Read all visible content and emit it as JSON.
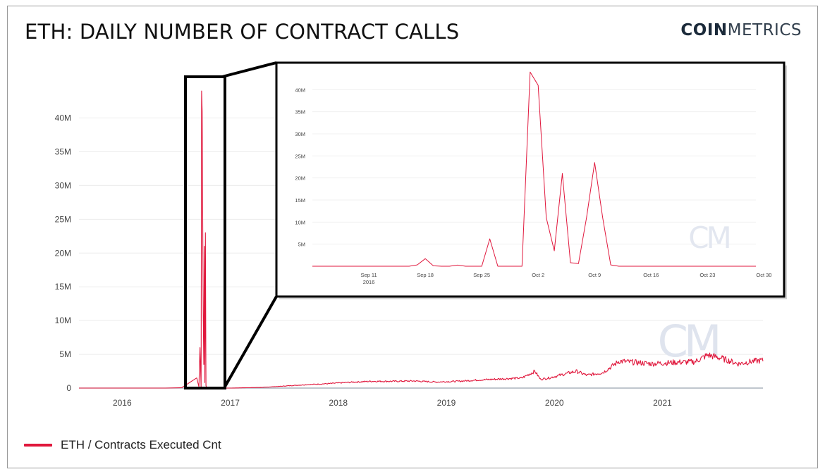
{
  "header": {
    "title": "ETH: DAILY NUMBER OF CONTRACT CALLS",
    "logo_bold": "COIN",
    "logo_light": "METRICS",
    "watermark": "CM"
  },
  "legend": {
    "label": "ETH / Contracts Executed Cnt",
    "color": "#e0173c"
  },
  "colors": {
    "line": "#e0173c",
    "grid": "#ececec",
    "axis": "#9aa3b0",
    "tick_text": "#444444",
    "highlight_box": "#000000"
  },
  "chart_data": [
    {
      "type": "line",
      "title": "ETH: DAILY NUMBER OF CONTRACT CALLS",
      "xlabel": "",
      "ylabel": "",
      "ylim": [
        0,
        46000000
      ],
      "y_ticks": [
        0,
        5000000,
        10000000,
        15000000,
        20000000,
        25000000,
        30000000,
        35000000,
        40000000
      ],
      "y_tick_labels": [
        "0",
        "5M",
        "10M",
        "15M",
        "20M",
        "25M",
        "30M",
        "35M",
        "40M"
      ],
      "x_range": [
        2015.6,
        2021.93
      ],
      "x_ticks": [
        2016,
        2017,
        2018,
        2019,
        2020,
        2021
      ],
      "x_tick_labels": [
        "2016",
        "2017",
        "2018",
        "2019",
        "2020",
        "2021"
      ],
      "grid": true,
      "legend_position": "bottom-left",
      "series": [
        {
          "name": "ETH / Contracts Executed Cnt",
          "x": [
            2015.6,
            2016.4,
            2016.55,
            2016.69,
            2016.71,
            2016.72,
            2016.73,
            2016.735,
            2016.74,
            2016.75,
            2016.755,
            2016.76,
            2016.765,
            2016.77,
            2016.775,
            2016.78,
            2016.8,
            2017.0,
            2017.3,
            2017.5,
            2017.7,
            2017.9,
            2018.1,
            2018.3,
            2018.5,
            2018.7,
            2018.9,
            2019.1,
            2019.3,
            2019.5,
            2019.7,
            2019.82,
            2019.87,
            2019.95,
            2020.1,
            2020.2,
            2020.3,
            2020.45,
            2020.6,
            2020.75,
            2020.9,
            2021.1,
            2021.3,
            2021.42,
            2021.55,
            2021.7,
            2021.85,
            2021.93
          ],
          "y": [
            0,
            0,
            50000,
            1500000,
            200000,
            6000000,
            200000,
            44000000,
            41000000,
            11000000,
            3500000,
            21000000,
            800000,
            23000000,
            400000,
            50000,
            0,
            0,
            100000,
            300000,
            500000,
            650000,
            850000,
            1000000,
            1000000,
            1050000,
            900000,
            1000000,
            1200000,
            1350000,
            1500000,
            2500000,
            1300000,
            1500000,
            2100000,
            2500000,
            1900000,
            2300000,
            4000000,
            3800000,
            3600000,
            3800000,
            3900000,
            4900000,
            4400000,
            3600000,
            4000000,
            4100000
          ]
        }
      ]
    },
    {
      "type": "line",
      "title": "",
      "xlabel": "",
      "ylabel": "",
      "ylim": [
        0,
        45000000
      ],
      "y_ticks": [
        5000000,
        10000000,
        15000000,
        20000000,
        25000000,
        30000000,
        35000000,
        40000000
      ],
      "y_tick_labels": [
        "5M",
        "10M",
        "15M",
        "20M",
        "25M",
        "30M",
        "35M",
        "40M"
      ],
      "x_range": [
        0,
        55
      ],
      "x_ticks": [
        7,
        14,
        21,
        28,
        35,
        42,
        49,
        56
      ],
      "x_tick_labels": [
        "Sep 11|2016",
        "Sep 18",
        "Sep 25",
        "Oct 2",
        "Oct 9",
        "Oct 16",
        "Oct 23",
        "Oct 30"
      ],
      "x_unit_note": "days from Sep 4 2016",
      "grid": true,
      "series": [
        {
          "name": "ETH / Contracts Executed Cnt",
          "x": [
            0,
            12,
            13,
            14,
            15,
            16,
            17,
            18,
            19,
            20,
            21,
            22,
            23,
            24,
            25,
            26,
            27,
            28,
            29,
            30,
            31,
            32,
            33,
            34,
            35,
            36,
            37,
            38,
            39,
            40,
            45,
            50,
            55
          ],
          "y": [
            0,
            0,
            300000,
            1700000,
            100000,
            0,
            0,
            250000,
            0,
            0,
            0,
            6200000,
            0,
            0,
            0,
            0,
            44000000,
            41000000,
            11000000,
            3500000,
            21000000,
            800000,
            600000,
            11000000,
            23500000,
            11000000,
            300000,
            0,
            0,
            0,
            0,
            0,
            0
          ]
        }
      ]
    }
  ]
}
